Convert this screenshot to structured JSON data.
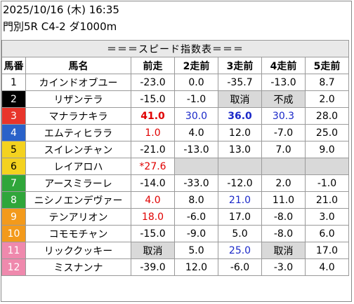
{
  "header": {
    "datetime": "2025/10/16 (木) 16:35",
    "race": "門別5R C4-2 ダ1000m"
  },
  "table": {
    "title": "＝＝＝スピード指数表＝＝＝",
    "columns": [
      "馬番",
      "馬名",
      "前走",
      "2走前",
      "3走前",
      "4走前",
      "5走前"
    ],
    "rows": [
      {
        "num": "1",
        "name": "カインドオブユー",
        "v": [
          "-23.0",
          "0.0",
          "-35.7",
          "-13.0",
          "8.7"
        ]
      },
      {
        "num": "2",
        "name": "リザンテラ",
        "v": [
          "-15.0",
          "-1.0",
          "取消",
          "不成",
          "2.0"
        ]
      },
      {
        "num": "3",
        "name": "マナラナキラ",
        "v": [
          "41.0",
          "30.0",
          "36.0",
          "30.3",
          "28.0"
        ]
      },
      {
        "num": "4",
        "name": "エムティヒララ",
        "v": [
          "1.0",
          "4.0",
          "12.0",
          "-7.0",
          "25.0"
        ]
      },
      {
        "num": "5",
        "name": "スイレンチャン",
        "v": [
          "-21.0",
          "-13.0",
          "13.0",
          "7.0",
          "9.0"
        ]
      },
      {
        "num": "6",
        "name": "レイアロハ",
        "v": [
          "*27.6",
          "",
          "",
          "",
          ""
        ]
      },
      {
        "num": "7",
        "name": "アースミラーレ",
        "v": [
          "-14.0",
          "-33.0",
          "-12.0",
          "2.0",
          "-1.0"
        ]
      },
      {
        "num": "8",
        "name": "ニシノエンデヴァー",
        "v": [
          "4.0",
          "8.0",
          "21.0",
          "11.0",
          "21.0"
        ]
      },
      {
        "num": "9",
        "name": "テンアリオン",
        "v": [
          "18.0",
          "-6.0",
          "17.0",
          "-8.0",
          "3.0"
        ]
      },
      {
        "num": "10",
        "name": "コモモチャン",
        "v": [
          "-15.0",
          "-9.0",
          "5.0",
          "-8.0",
          "6.0"
        ]
      },
      {
        "num": "11",
        "name": "リッククッキー",
        "v": [
          "取消",
          "5.0",
          "25.0",
          "取消",
          "17.0"
        ]
      },
      {
        "num": "12",
        "name": "ミスナンナ",
        "v": [
          "-39.0",
          "12.0",
          "-6.0",
          "-3.0",
          "4.0"
        ]
      }
    ]
  },
  "colors": {
    "gate_1": "#ffffff",
    "gate_2": "#000000",
    "gate_3": "#e8352b",
    "gate_4": "#2a62c9",
    "gate_5": "#f4d21f",
    "gate_6": "#2fa63a",
    "gate_7": "#f39a1b",
    "gate_8": "#ef89ad",
    "highlight_red": "#e00000",
    "highlight_blue": "#1a28c8",
    "gray_cell": "#d9d9d9"
  }
}
